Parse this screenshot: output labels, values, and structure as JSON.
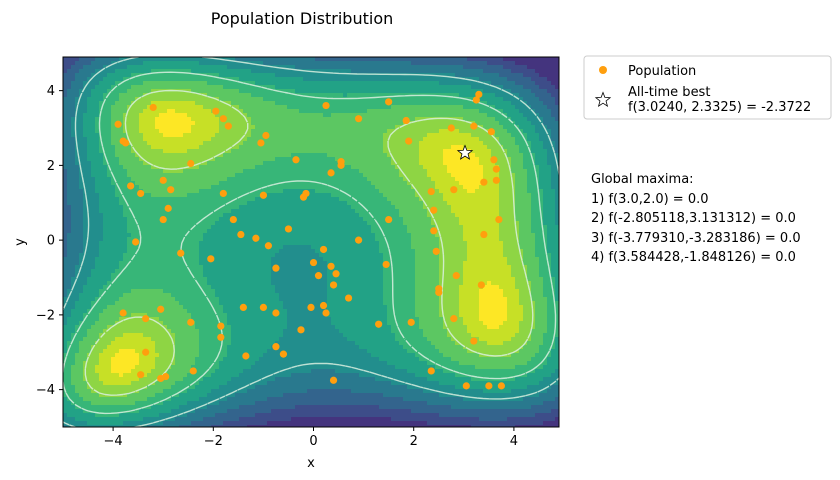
{
  "chart_data": {
    "type": "scatter",
    "title": "Population Distribution",
    "xlabel": "x",
    "ylabel": "y",
    "xlim": [
      -5,
      4.9
    ],
    "ylim": [
      -5,
      4.9
    ],
    "xticks": [
      -4,
      -2,
      0,
      2,
      4
    ],
    "yticks": [
      -4,
      -2,
      0,
      2,
      4
    ],
    "background": "filled-contour",
    "colors": {
      "population": "#ff9f0e",
      "best_star_stroke": "#000000",
      "contour_line": "#d9f0e0"
    },
    "series": [
      {
        "name": "Population",
        "marker": "circle",
        "points": [
          [
            -3.2,
            3.55
          ],
          [
            -3.9,
            3.1
          ],
          [
            -3.8,
            2.65
          ],
          [
            -3.75,
            2.6
          ],
          [
            -3.65,
            1.45
          ],
          [
            -3.45,
            1.25
          ],
          [
            -3.0,
            1.6
          ],
          [
            -2.85,
            1.35
          ],
          [
            -2.45,
            2.05
          ],
          [
            -2.9,
            0.85
          ],
          [
            -3.0,
            0.55
          ],
          [
            -3.55,
            -0.05
          ],
          [
            -2.65,
            -0.35
          ],
          [
            -2.05,
            -0.5
          ],
          [
            -1.95,
            3.45
          ],
          [
            -1.8,
            3.25
          ],
          [
            -1.7,
            3.05
          ],
          [
            -1.8,
            1.25
          ],
          [
            -1.6,
            0.55
          ],
          [
            -1.45,
            0.15
          ],
          [
            -1.05,
            2.6
          ],
          [
            -0.95,
            2.8
          ],
          [
            -1.0,
            1.2
          ],
          [
            -1.15,
            0.05
          ],
          [
            -0.9,
            -0.15
          ],
          [
            -0.5,
            0.3
          ],
          [
            -0.35,
            2.15
          ],
          [
            -0.2,
            1.15
          ],
          [
            -0.15,
            1.25
          ],
          [
            0.25,
            3.6
          ],
          [
            0.35,
            1.8
          ],
          [
            0.55,
            2.0
          ],
          [
            0.55,
            2.1
          ],
          [
            0.9,
            3.25
          ],
          [
            0.9,
            0.0
          ],
          [
            1.5,
            3.7
          ],
          [
            1.85,
            3.2
          ],
          [
            1.9,
            2.65
          ],
          [
            1.5,
            0.55
          ],
          [
            1.45,
            -0.65
          ],
          [
            2.35,
            1.3
          ],
          [
            2.4,
            0.8
          ],
          [
            2.4,
            0.25
          ],
          [
            2.45,
            -0.3
          ],
          [
            2.75,
            3.0
          ],
          [
            2.8,
            1.35
          ],
          [
            2.85,
            -0.95
          ],
          [
            2.5,
            -1.3
          ],
          [
            2.5,
            -1.4
          ],
          [
            2.8,
            -2.1
          ],
          [
            3.2,
            3.05
          ],
          [
            3.25,
            3.75
          ],
          [
            3.3,
            3.9
          ],
          [
            3.55,
            2.9
          ],
          [
            3.6,
            2.15
          ],
          [
            3.65,
            1.9
          ],
          [
            3.65,
            1.6
          ],
          [
            3.4,
            1.55
          ],
          [
            3.4,
            0.15
          ],
          [
            3.35,
            -1.2
          ],
          [
            3.7,
            0.55
          ],
          [
            3.2,
            -2.7
          ],
          [
            2.35,
            -3.5
          ],
          [
            3.05,
            -3.9
          ],
          [
            3.5,
            -3.9
          ],
          [
            3.75,
            -3.9
          ],
          [
            -0.75,
            -0.75
          ],
          [
            0.2,
            -0.25
          ],
          [
            0.0,
            -0.6
          ],
          [
            0.1,
            -0.95
          ],
          [
            0.35,
            -0.7
          ],
          [
            0.45,
            -0.9
          ],
          [
            0.4,
            -1.2
          ],
          [
            0.7,
            -1.55
          ],
          [
            0.2,
            -1.75
          ],
          [
            0.25,
            -1.95
          ],
          [
            -0.05,
            -1.8
          ],
          [
            -0.25,
            -2.4
          ],
          [
            -0.75,
            -1.95
          ],
          [
            -0.75,
            -2.85
          ],
          [
            -0.6,
            -3.05
          ],
          [
            -1.0,
            -1.8
          ],
          [
            -1.4,
            -1.8
          ],
          [
            -1.35,
            -3.1
          ],
          [
            -1.85,
            -2.3
          ],
          [
            -1.85,
            -2.6
          ],
          [
            -2.45,
            -2.2
          ],
          [
            -2.4,
            -3.5
          ],
          [
            -3.05,
            -1.85
          ],
          [
            -3.35,
            -2.1
          ],
          [
            -3.8,
            -1.95
          ],
          [
            -3.35,
            -3.0
          ],
          [
            -3.45,
            -3.6
          ],
          [
            -3.05,
            -3.7
          ],
          [
            -2.95,
            -3.65
          ],
          [
            0.4,
            -3.75
          ],
          [
            1.3,
            -2.25
          ],
          [
            1.95,
            -2.2
          ]
        ]
      },
      {
        "name": "All-time best",
        "marker": "star",
        "label": "f(3.0240, 2.3325) = -2.3722",
        "points": [
          [
            3.024,
            2.3325
          ]
        ]
      }
    ],
    "legend": {
      "placement": "outside-top-right",
      "entries": [
        {
          "label": "Population"
        },
        {
          "label": "All-time best",
          "sublabel": "f(3.0240, 2.3325) = -2.3722"
        }
      ]
    },
    "annotation": {
      "header": "Global maxima:",
      "lines": [
        "1) f(3.0,2.0) = 0.0",
        "2) f(-2.805118,3.131312) = 0.0",
        "3) f(-3.779310,-3.283186) = 0.0",
        "4) f(3.584428,-1.848126) = 0.0"
      ]
    }
  }
}
